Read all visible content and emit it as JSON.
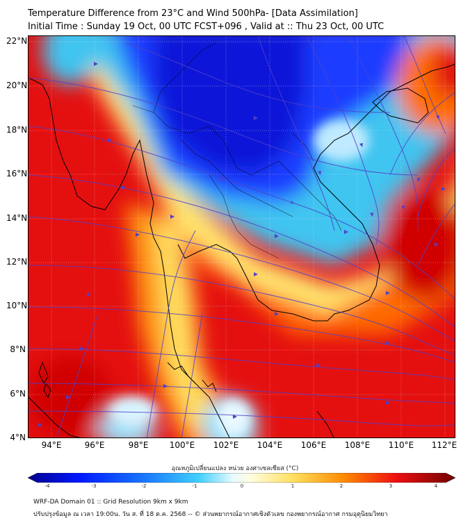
{
  "title": {
    "line1": "Temperature Difference from 23°C and Wind 500hPa- [Data Assimilation]",
    "line2": "Initial Time : Sunday 19 Oct, 00 UTC FCST+096 , Valid at ::  Thu 23 Oct, 00 UTC"
  },
  "map": {
    "lat_labels": [
      "22°N",
      "20°N",
      "18°N",
      "16°N",
      "14°N",
      "12°N",
      "10°N",
      "8°N",
      "6°N",
      "4°N"
    ],
    "lon_labels": [
      "94°E",
      "96°E",
      "98°E",
      "100°E",
      "102°E",
      "104°E",
      "106°E",
      "108°E",
      "110°E",
      "112°E"
    ],
    "lat_range": [
      4,
      22
    ],
    "lon_range": [
      93,
      112.8
    ],
    "colors": {
      "deep_red": "#d00000",
      "red": "#ee1818",
      "orange": "#ff7a00",
      "yellow": "#fff07a",
      "cyan": "#3ec8f0",
      "blue": "#1a3cff",
      "deep_blue": "#0a18d8",
      "streamline": "#5040c8",
      "coast": "#000000"
    }
  },
  "colorbar": {
    "label": "อุณหภูมิเปลี่ยนแปลง หน่วย องศาเซลเซียส (°C)",
    "ticks": [
      "-4",
      "-3",
      "-2",
      "-1",
      "0",
      "1",
      "2",
      "3",
      "4"
    ],
    "range": [
      -4,
      4
    ]
  },
  "footer": {
    "line1": "WRF-DA Domain 01 :: Grid Resolution 9km x 9km",
    "line2": "ปรับปรุงข้อมูล ณ เวลา 19:00น. วัน ส. ที่ 18 ต.ค. 2568 -- © ส่วนพยากรณ์อากาศเชิงตัวเลข กองพยากรณ์อากาศ กรมอุตุนิยมวิทยา"
  }
}
